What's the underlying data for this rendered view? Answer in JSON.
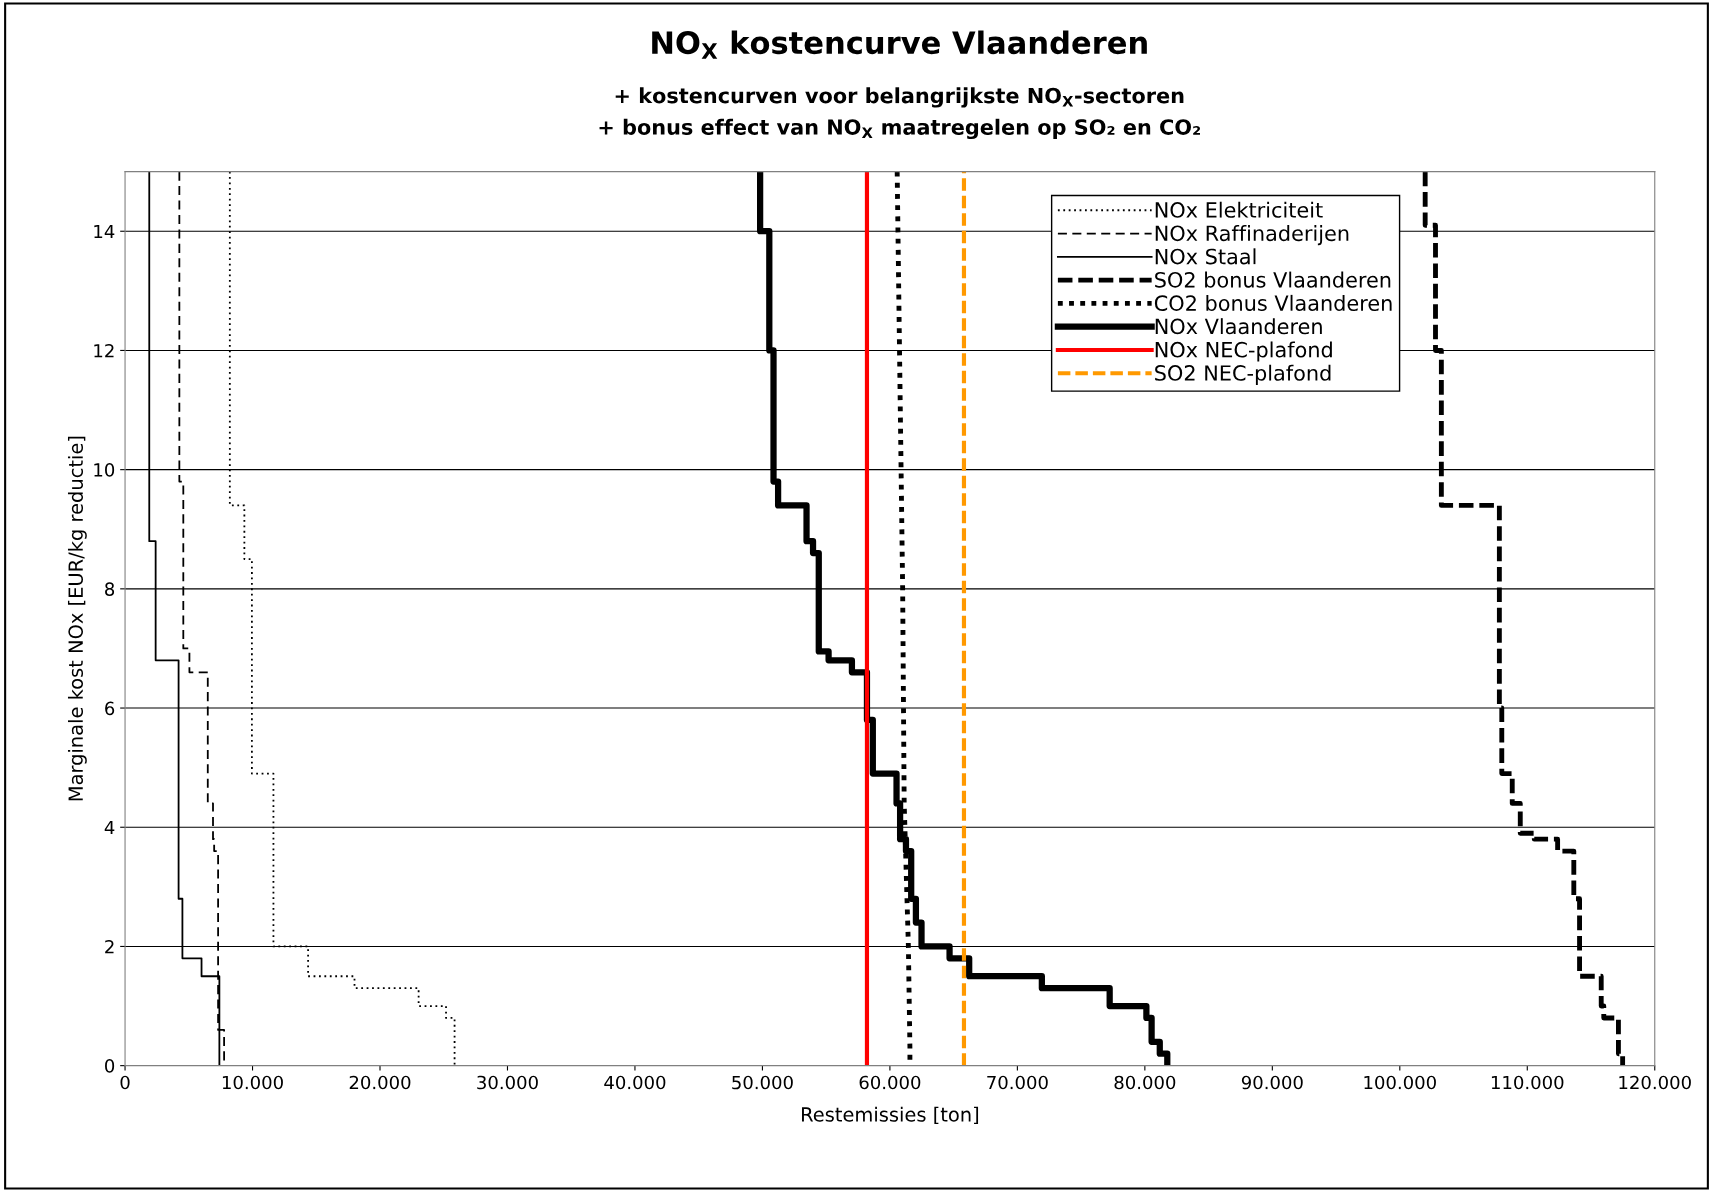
{
  "chart_data": {
    "type": "line",
    "title": "NO$_{X}$ kostencurve Vlaanderen",
    "subtitle": "+ kostencurven voor belangrijkste NO$_{X}$-sectoren\n+ bonus effect van NO$_{X}$ maatregelen op SO₂ en CO₂",
    "xlabel": "Restemissies [ton]",
    "ylabel": "Marginale kost NOx [EUR/kg reductie]",
    "xlim": [
      0,
      120000
    ],
    "ylim": [
      0,
      15
    ],
    "xticks": [
      0,
      {
        "value": 10000,
        "label": "10.000"
      },
      {
        "value": 20000,
        "label": "20.000"
      },
      {
        "value": 30000,
        "label": "30.000"
      },
      {
        "value": 40000,
        "label": "40.000"
      },
      {
        "value": 50000,
        "label": "50.000"
      },
      {
        "value": 60000,
        "label": "60.000"
      },
      {
        "value": 70000,
        "label": "70.000"
      },
      {
        "value": 80000,
        "label": "80.000"
      },
      {
        "value": 90000,
        "label": "90.000"
      },
      {
        "value": 100000,
        "label": "100.000"
      },
      {
        "value": 110000,
        "label": "110.000"
      },
      {
        "value": 120000,
        "label": "120.000"
      }
    ],
    "yticks": [
      0,
      2,
      4,
      6,
      8,
      10,
      12,
      14
    ],
    "grid": "y",
    "legend": "top right",
    "marker": "none",
    "series": [
      {
        "name": "NOx Elektriciteit",
        "color": "#000000",
        "line_style": "dotted",
        "x": [
          8220,
          8220,
          9360,
          9360,
          9950,
          9950,
          11640,
          11640,
          14360,
          14360,
          18000,
          18000,
          23030,
          23030,
          25180,
          25180,
          25850,
          25850
        ],
        "values": [
          15,
          9.4,
          9.4,
          8.5,
          8.5,
          4.9,
          4.9,
          2.0,
          2.0,
          1.5,
          1.5,
          1.3,
          1.3,
          1.0,
          1.0,
          0.8,
          0.8,
          0
        ]
      },
      {
        "name": "NOx Raffinaderijen",
        "color": "#000000",
        "line_style": "dashed",
        "x": [
          4260,
          4260,
          4570,
          4570,
          5050,
          5050,
          6490,
          6490,
          6900,
          6900,
          6990,
          6990,
          7300,
          7300,
          7770,
          7770
        ],
        "values": [
          15,
          9.8,
          9.8,
          7.0,
          7.0,
          6.6,
          6.6,
          4.4,
          4.4,
          3.8,
          3.8,
          3.6,
          3.6,
          0.6,
          0.6,
          0
        ]
      },
      {
        "name": "NOx Staal",
        "color": "#000000",
        "line_style": "solid",
        "x": [
          1900,
          1900,
          2400,
          2400,
          4200,
          4200,
          4500,
          4500,
          6000,
          6000,
          7400,
          7400
        ],
        "values": [
          15,
          8.8,
          8.8,
          6.8,
          6.8,
          2.8,
          2.8,
          1.8,
          1.8,
          1.5,
          1.5,
          0
        ]
      },
      {
        "name": "SO2 bonus Vlaanderen",
        "color": "#000000",
        "line_style": "dashed",
        "x": [
          101990,
          101990,
          102800,
          102800,
          103260,
          103260,
          107810,
          107810,
          108000,
          108000,
          108820,
          108820,
          109450,
          109450,
          110550,
          110550,
          112380,
          112380,
          113650,
          113650,
          114100,
          114100,
          115800,
          115800,
          116000,
          116000,
          117150,
          117150,
          117480,
          117480
        ],
        "values": [
          15,
          14.1,
          14.1,
          12,
          12,
          9.4,
          9.4,
          6,
          6,
          4.9,
          4.9,
          4.4,
          4.4,
          3.9,
          3.9,
          3.8,
          3.8,
          3.6,
          3.6,
          2.8,
          2.8,
          1.5,
          1.5,
          1.0,
          1.0,
          0.8,
          0.8,
          0.2,
          0.2,
          0
        ]
      },
      {
        "name": "CO2 bonus Vlaanderen",
        "color": "#000000",
        "line_style": "dotted",
        "x": [
          60570,
          61000,
          61120,
          61450,
          61570,
          61570
        ],
        "values": [
          15,
          8,
          4.4,
          2,
          0.3,
          0
        ]
      },
      {
        "name": "NOx Vlaanderen",
        "color": "#000000",
        "line_style": "solid",
        "x": [
          49820,
          49820,
          50540,
          50540,
          50870,
          50870,
          51230,
          51230,
          53460,
          53460,
          53970,
          53970,
          54420,
          54420,
          55190,
          55190,
          57020,
          57020,
          58200,
          58200,
          58660,
          58660,
          60520,
          60520,
          60800,
          60800,
          61260,
          61260,
          61670,
          61670,
          62040,
          62040,
          62480,
          62480,
          64680,
          64680,
          66220,
          66220,
          71920,
          71920,
          77240,
          77240,
          80120,
          80120,
          80530,
          80530,
          81170,
          81170,
          81760,
          81760
        ],
        "values": [
          15,
          14,
          14,
          12,
          12,
          9.8,
          9.8,
          9.4,
          9.4,
          8.8,
          8.8,
          8.6,
          8.6,
          6.95,
          6.95,
          6.8,
          6.8,
          6.6,
          6.6,
          5.8,
          5.8,
          4.9,
          4.9,
          4.4,
          4.4,
          3.8,
          3.8,
          3.6,
          3.6,
          2.8,
          2.8,
          2.4,
          2.4,
          2.0,
          2.0,
          1.8,
          1.8,
          1.5,
          1.5,
          1.3,
          1.3,
          1.0,
          1.0,
          0.8,
          0.8,
          0.4,
          0.4,
          0.2,
          0.2,
          0
        ]
      },
      {
        "name": "NOx NEC-plafond",
        "color": "#ff0000",
        "line_style": "solid",
        "x": [
          58200,
          58200
        ],
        "values": [
          0,
          15
        ]
      },
      {
        "name": "SO2 NEC-plafond",
        "color": "#ff9900",
        "line_style": "dashed",
        "x": [
          65810,
          65810
        ],
        "values": [
          0,
          15
        ]
      }
    ]
  }
}
